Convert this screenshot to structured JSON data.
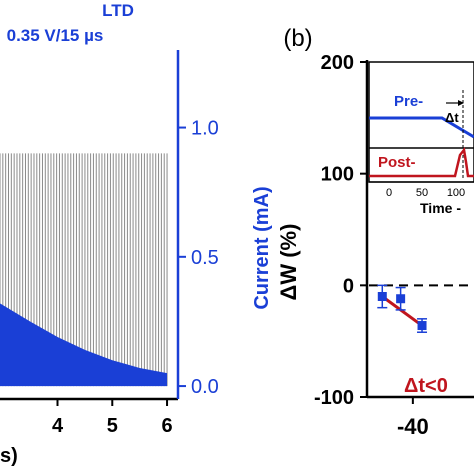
{
  "chart_data": [
    {
      "panel": "a",
      "type": "line",
      "title": "LTD",
      "subtitle": "0.35 V/15 µs",
      "xlabel": "s)",
      "ylabel_right": "Current (mA)",
      "x_ticks": [
        "4",
        "5",
        "6"
      ],
      "y_right_ticks": [
        "0.0",
        "0.5",
        "1.0"
      ],
      "xlim": [
        2.95,
        6.2
      ],
      "y_right_lim": [
        -0.05,
        1.3
      ],
      "series": [
        {
          "values_description": "pulse spikes",
          "spike_top": 0.9,
          "spike_bottom": 0.0,
          "x_start": 2.95,
          "x_end": 6.0,
          "color": "#8a8a8a"
        },
        {
          "values_description": "baseline envelope",
          "x": [
            2.95,
            3.5,
            4.0,
            4.5,
            5.0,
            5.5,
            6.0
          ],
          "y": [
            0.32,
            0.25,
            0.19,
            0.14,
            0.1,
            0.07,
            0.05
          ],
          "color": "#1a3fd6"
        }
      ],
      "accent": "#1a3fd6"
    },
    {
      "panel": "b",
      "type": "scatter",
      "panel_label": "(b)",
      "ylabel": "ΔW (%)",
      "xlabel": "",
      "y_ticks": [
        "200",
        "100",
        "0",
        "-100"
      ],
      "x_ticks": [
        "-40"
      ],
      "ylim": [
        -100,
        200
      ],
      "xlim": [
        -55,
        -20
      ],
      "series": [
        {
          "color": "#1a3fd6",
          "x": [
            -50,
            -44,
            -37
          ],
          "y": [
            -10,
            -12,
            -36
          ],
          "err": [
            10,
            10,
            6
          ]
        }
      ],
      "fit": {
        "color": "#c0151e",
        "x": [
          -50,
          -37
        ],
        "y": [
          -10,
          -36
        ]
      },
      "annotation": "Δt<0",
      "inset": {
        "pre_label": "Pre-",
        "post_label": "Post-",
        "dt_label": "Δt",
        "x_ticks": [
          "0",
          "50",
          "100"
        ],
        "xlabel": "Time -",
        "pre_color": "#1a3fd6",
        "post_color": "#c0151e"
      }
    }
  ]
}
